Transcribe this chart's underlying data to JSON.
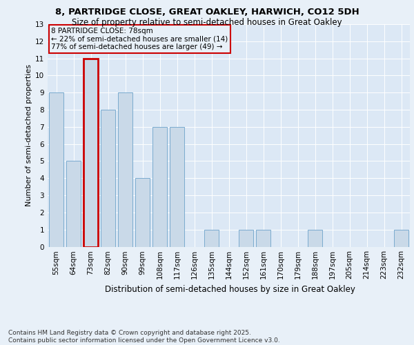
{
  "title_line1": "8, PARTRIDGE CLOSE, GREAT OAKLEY, HARWICH, CO12 5DH",
  "title_line2": "Size of property relative to semi-detached houses in Great Oakley",
  "xlabel": "Distribution of semi-detached houses by size in Great Oakley",
  "ylabel": "Number of semi-detached properties",
  "categories": [
    "55sqm",
    "64sqm",
    "73sqm",
    "82sqm",
    "90sqm",
    "99sqm",
    "108sqm",
    "117sqm",
    "126sqm",
    "135sqm",
    "144sqm",
    "152sqm",
    "161sqm",
    "170sqm",
    "179sqm",
    "188sqm",
    "197sqm",
    "205sqm",
    "214sqm",
    "223sqm",
    "232sqm"
  ],
  "values": [
    9,
    5,
    11,
    8,
    9,
    4,
    7,
    7,
    0,
    1,
    0,
    1,
    1,
    0,
    0,
    1,
    0,
    0,
    0,
    0,
    1
  ],
  "bar_color": "#c9d9e8",
  "bar_edge_color": "#7aabcf",
  "highlight_bar_index": 2,
  "highlight_edge_color": "#cc0000",
  "highlight_linewidth": 2.0,
  "annotation_box_text": "8 PARTRIDGE CLOSE: 78sqm\n← 22% of semi-detached houses are smaller (14)\n77% of semi-detached houses are larger (49) →",
  "annotation_box_edge_color": "#cc0000",
  "ylim": [
    0,
    13
  ],
  "yticks": [
    0,
    1,
    2,
    3,
    4,
    5,
    6,
    7,
    8,
    9,
    10,
    11,
    12,
    13
  ],
  "background_color": "#e8f0f8",
  "plot_background_color": "#dce8f5",
  "grid_color": "#ffffff",
  "footnote": "Contains HM Land Registry data © Crown copyright and database right 2025.\nContains public sector information licensed under the Open Government Licence v3.0.",
  "title_fontsize": 9.5,
  "subtitle_fontsize": 8.5,
  "xlabel_fontsize": 8.5,
  "ylabel_fontsize": 8,
  "tick_fontsize": 7.5,
  "annotation_fontsize": 7.5,
  "footnote_fontsize": 6.5
}
